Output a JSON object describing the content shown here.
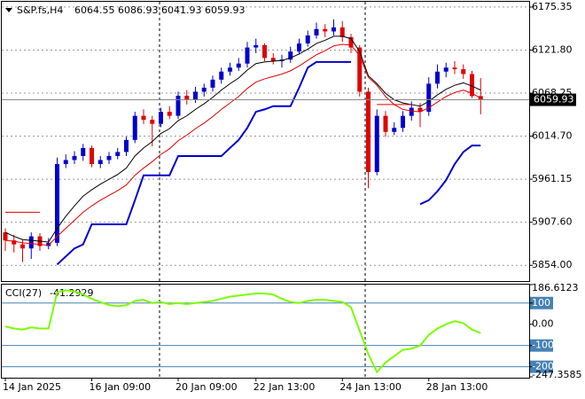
{
  "chart_data": [
    {
      "type": "candlestick",
      "title": "S&P.fs,H4",
      "categories": [
        "14 Jan 2025",
        null,
        null,
        null,
        null,
        null,
        null,
        null,
        null,
        null,
        "16 Jan 09:00",
        null,
        null,
        null,
        null,
        null,
        null,
        null,
        null,
        null,
        "20 Jan 09:00",
        null,
        null,
        null,
        null,
        null,
        null,
        null,
        null,
        "22 Jan 13:00",
        null,
        null,
        null,
        null,
        null,
        null,
        null,
        null,
        null,
        "24 Jan 13:00",
        null,
        null,
        null,
        null,
        null,
        null,
        null,
        null,
        null,
        "28 Jan 13:00",
        null,
        null,
        null,
        null,
        null,
        null
      ],
      "open": [
        5895,
        5885,
        5880,
        5875,
        5890,
        5878,
        5882,
        5980,
        5985,
        5990,
        6000,
        5980,
        5985,
        5990,
        5995,
        6010,
        6040,
        6035,
        6030,
        6045,
        6040,
        6065,
        6060,
        6070,
        6075,
        6085,
        6095,
        6100,
        6105,
        6125,
        6128,
        6112,
        6108,
        6110,
        6120,
        6130,
        6140,
        6148,
        6145,
        6150,
        6138,
        6125,
        6070,
        5970,
        6040,
        6020,
        6025,
        6040,
        6050,
        6045,
        6080,
        6095,
        6100,
        6098,
        6092,
        6064.55
      ],
      "high": [
        5900,
        5892,
        5886,
        5895,
        5894,
        5888,
        5988,
        5992,
        5996,
        6005,
        6003,
        5990,
        5995,
        6000,
        6014,
        6045,
        6048,
        6040,
        6050,
        6052,
        6070,
        6072,
        6076,
        6080,
        6090,
        6100,
        6106,
        6112,
        6132,
        6136,
        6130,
        6118,
        6116,
        6126,
        6136,
        6146,
        6156,
        6154,
        6160,
        6158,
        6142,
        6128,
        6075,
        6048,
        6046,
        6032,
        6046,
        6058,
        6056,
        6088,
        6104,
        6106,
        6108,
        6104,
        6096,
        6086.93
      ],
      "low": [
        5872,
        5870,
        5858,
        5862,
        5872,
        5874,
        5878,
        5975,
        5980,
        5984,
        5976,
        5975,
        5980,
        5986,
        5990,
        6006,
        6030,
        6002,
        6026,
        6036,
        6036,
        6054,
        6056,
        6064,
        6070,
        6080,
        6090,
        6096,
        6100,
        6118,
        6108,
        6104,
        6100,
        6106,
        6116,
        6126,
        6136,
        6138,
        6140,
        6132,
        6118,
        6064,
        5950,
        5966,
        6014,
        6016,
        6020,
        6034,
        6026,
        6040,
        6074,
        6088,
        6092,
        6086,
        6062,
        6041.93
      ],
      "close": [
        5885,
        5880,
        5875,
        5890,
        5878,
        5882,
        5980,
        5985,
        5990,
        6000,
        5980,
        5985,
        5990,
        5995,
        6010,
        6040,
        6035,
        6030,
        6045,
        6040,
        6065,
        6060,
        6070,
        6075,
        6085,
        6095,
        6100,
        6105,
        6125,
        6128,
        6112,
        6108,
        6110,
        6120,
        6130,
        6140,
        6148,
        6145,
        6150,
        6138,
        6125,
        6070,
        5970,
        6040,
        6020,
        6025,
        6040,
        6050,
        6045,
        6080,
        6095,
        6100,
        6098,
        6092,
        6064.55,
        6059.93
      ],
      "up_color": "#0000cd",
      "down_color": "#e00000",
      "series": [
        {
          "color": "#000000",
          "values": [
            5895,
            5890,
            5886,
            5885,
            5884,
            5883,
            5900,
            5915,
            5928,
            5940,
            5948,
            5955,
            5961,
            5967,
            5975,
            5990,
            6000,
            6008,
            6018,
            6024,
            6034,
            6040,
            6048,
            6055,
            6063,
            6072,
            6080,
            6087,
            6097,
            6105,
            6107,
            6108,
            6109,
            6112,
            6117,
            6123,
            6130,
            6134,
            6139,
            6139,
            6136,
            6120,
            6090,
            6080,
            6068,
            6060,
            6056,
            6054,
            6052,
            6058,
            6066,
            6073,
            6078,
            6081,
            6077,
            6072
          ]
        },
        {
          "color": "#e00000",
          "values": [
            5885,
            5884,
            5882,
            5881,
            5880,
            5879,
            5890,
            5900,
            5910,
            5920,
            5928,
            5935,
            5941,
            5947,
            5954,
            5966,
            5975,
            5983,
            5992,
            5999,
            6009,
            6016,
            6024,
            6031,
            6039,
            6048,
            6056,
            6064,
            6074,
            6082,
            6086,
            6089,
            6092,
            6096,
            6102,
            6109,
            6116,
            6121,
            6127,
            6129,
            6128,
            6115,
            6088,
            6078,
            6064,
            6054,
            6048,
            6046,
            6045,
            6050,
            6057,
            6064,
            6069,
            6072,
            6068,
            6062
          ]
        },
        {
          "color": "#0000cd",
          "values": [
            null,
            null,
            null,
            null,
            null,
            null,
            5855,
            5865,
            5875,
            5880,
            5905,
            5905,
            5905,
            5905,
            5905,
            5935,
            5966,
            5966,
            5966,
            5966,
            5990,
            5990,
            5990,
            5990,
            5990,
            5990,
            6000,
            6010,
            6025,
            6045,
            6048,
            6052,
            6052,
            6052,
            6075,
            6100,
            6107,
            6107,
            6107,
            6107,
            6107,
            null,
            null,
            null,
            null,
            null,
            null,
            null,
            5930,
            5935,
            5946,
            5960,
            5980,
            5995,
            6003,
            6003
          ]
        },
        {
          "color": "#e00000",
          "values": [
            5920,
            5920,
            5920,
            5920,
            5920,
            null,
            null,
            null,
            null,
            null,
            null,
            null,
            null,
            null,
            null,
            null,
            null,
            null,
            null,
            null,
            null,
            null,
            null,
            null,
            null,
            null,
            null,
            null,
            null,
            null,
            null,
            null,
            null,
            null,
            null,
            null,
            null,
            null,
            null,
            null,
            null,
            null,
            null,
            6054,
            6054,
            6054,
            6054,
            6054,
            null,
            null,
            null,
            null,
            null,
            null,
            null,
            null
          ]
        }
      ],
      "ylim": [
        5835.5,
        6181.9
      ],
      "yticks": [
        6175.35,
        {
          "value": 6121.8,
          "label": "6121.80"
        },
        6068.25,
        {
          "value": 6014.7,
          "label": "6014.70"
        },
        5961.15,
        {
          "value": 5907.6,
          "label": "5907.60"
        },
        {
          "value": 5854,
          "label": "5854.00"
        }
      ],
      "grid": true
    },
    {
      "type": "line",
      "title": "CCI(27)",
      "series": [
        {
          "color": "#7cfc00",
          "values": [
            -10,
            -20,
            -25,
            -15,
            -20,
            -20,
            150,
            160,
            155,
            140,
            120,
            105,
            90,
            85,
            90,
            110,
            115,
            100,
            105,
            95,
            100,
            95,
            100,
            105,
            110,
            120,
            130,
            135,
            140,
            145,
            145,
            140,
            120,
            105,
            100,
            110,
            115,
            115,
            110,
            105,
            80,
            -30,
            -140,
            -225,
            -180,
            -150,
            -120,
            -115,
            -100,
            -50,
            -20,
            0,
            15,
            5,
            -25,
            -41.2929
          ]
        }
      ],
      "ylim": [
        -247.3585,
        186.6123
      ],
      "yticks": [
        186.6123,
        100,
        {
          "value": 0,
          "label": "0.00"
        },
        -100,
        -200,
        -247.3585
      ]
    }
  ]
}
